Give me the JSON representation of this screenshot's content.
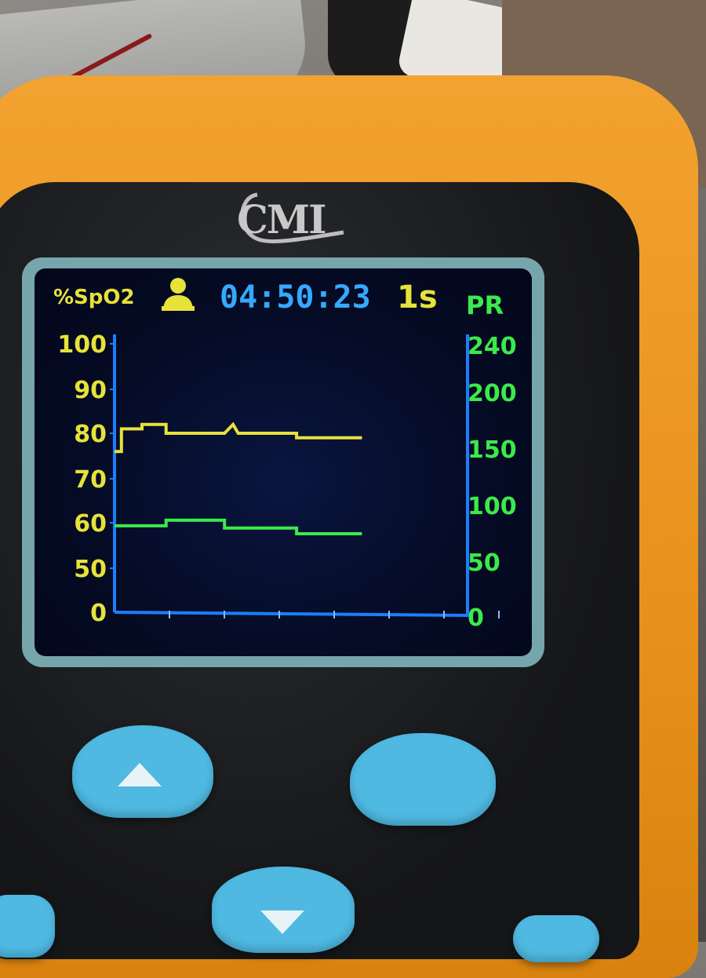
{
  "device": {
    "brand": "CMI"
  },
  "header": {
    "spo2_label": "%SpO2",
    "clock": "04:50:23",
    "interval": "1s",
    "pr_label": "PR",
    "person_icon": "person-icon"
  },
  "colors": {
    "spo2": "#e6e23a",
    "pr": "#3bea4a",
    "axis": "#1a7fff",
    "clock": "#35a8ff",
    "shell": "#ee9a22",
    "buttons": "#4fb9e2"
  },
  "chart_data": {
    "type": "line",
    "x_ticks": 7,
    "y_left": {
      "label": "%SpO2",
      "ticks": [
        "100",
        "90",
        "80",
        "70",
        "60",
        "50",
        "0"
      ]
    },
    "y_right": {
      "label": "PR",
      "ticks": [
        "240",
        "200",
        "150",
        "100",
        "50",
        "0"
      ]
    },
    "series": [
      {
        "name": "%SpO2",
        "axis": "left",
        "x": [
          0.0,
          0.2,
          0.2,
          0.8,
          0.8,
          1.5,
          1.5,
          3.2,
          3.2,
          3.45,
          3.6,
          3.75,
          5.3,
          5.3,
          7.2
        ],
        "values": [
          76,
          76,
          81,
          81,
          82,
          82,
          80,
          80,
          80,
          82,
          80,
          80,
          80,
          79,
          79
        ]
      },
      {
        "name": "PR",
        "axis": "right",
        "x": [
          0.0,
          1.5,
          1.5,
          3.2,
          3.2,
          5.3,
          5.3,
          7.2
        ],
        "values": [
          82,
          82,
          87,
          87,
          80,
          80,
          75,
          75
        ]
      }
    ]
  },
  "buttons": {
    "up_icon": "arrow-up-icon",
    "down_icon": "arrow-down-icon"
  }
}
